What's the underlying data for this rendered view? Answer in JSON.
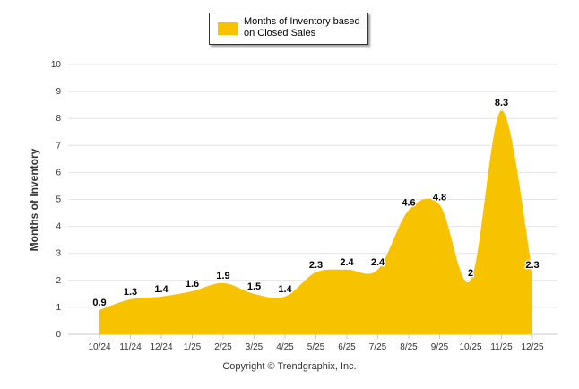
{
  "chart_data": {
    "type": "area",
    "categories": [
      "10/24",
      "11/24",
      "12/24",
      "1/25",
      "2/25",
      "3/25",
      "4/25",
      "5/25",
      "6/25",
      "7/25",
      "8/25",
      "9/25",
      "10/25",
      "11/25",
      "12/25"
    ],
    "series": [
      {
        "name": "Months of Inventory based on Closed Sales",
        "values": [
          0.9,
          1.3,
          1.4,
          1.6,
          1.9,
          1.5,
          1.4,
          2.3,
          2.4,
          2.4,
          4.6,
          4.8,
          2,
          8.3,
          2.3
        ],
        "labels": [
          "0.9",
          "1.3",
          "1.4",
          "1.6",
          "1.9",
          "1.5",
          "1.4",
          "2.3",
          "2.4",
          "2.4",
          "4.6",
          "4.8",
          "2",
          "8.3",
          "2.3"
        ]
      }
    ],
    "ylabel": "Months of Inventory",
    "xlabel": "",
    "ylim": [
      0,
      10
    ],
    "yticks": [
      "0",
      "1",
      "2",
      "3",
      "4",
      "5",
      "6",
      "7",
      "8",
      "9",
      "10"
    ],
    "grid": true,
    "legend_position": "top-center",
    "color": "#F7C200"
  },
  "footer": {
    "copyright": "Copyright © Trendgraphix, Inc."
  }
}
